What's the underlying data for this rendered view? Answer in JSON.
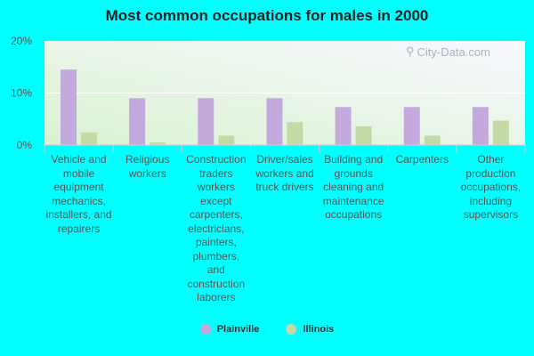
{
  "chart_data": {
    "type": "bar",
    "title": "Most common occupations for males in 2000",
    "xlabel": "",
    "ylabel": "",
    "ylim": [
      0,
      20
    ],
    "yticks": [
      "0%",
      "10%",
      "20%"
    ],
    "categories": [
      "Vehicle and mobile equipment mechanics, installers, and repairers",
      "Religious workers",
      "Construction traders workers except carpenters, electricians, painters, plumbers, and construction laborers",
      "Driver/sales workers and truck drivers",
      "Building and grounds cleaning and maintenance occupations",
      "Carpenters",
      "Other production occupations, including supervisors"
    ],
    "series": [
      {
        "name": "Plainville",
        "color": "#c3a9dc",
        "values": [
          14.5,
          9.0,
          9.0,
          9.0,
          7.3,
          7.3,
          7.3
        ]
      },
      {
        "name": "Illinois",
        "color": "#c5d9a6",
        "values": [
          2.4,
          0.5,
          1.8,
          4.4,
          3.6,
          1.8,
          4.7
        ]
      }
    ],
    "grid": true,
    "legend": "bottom"
  },
  "watermark": "City-Data.com"
}
